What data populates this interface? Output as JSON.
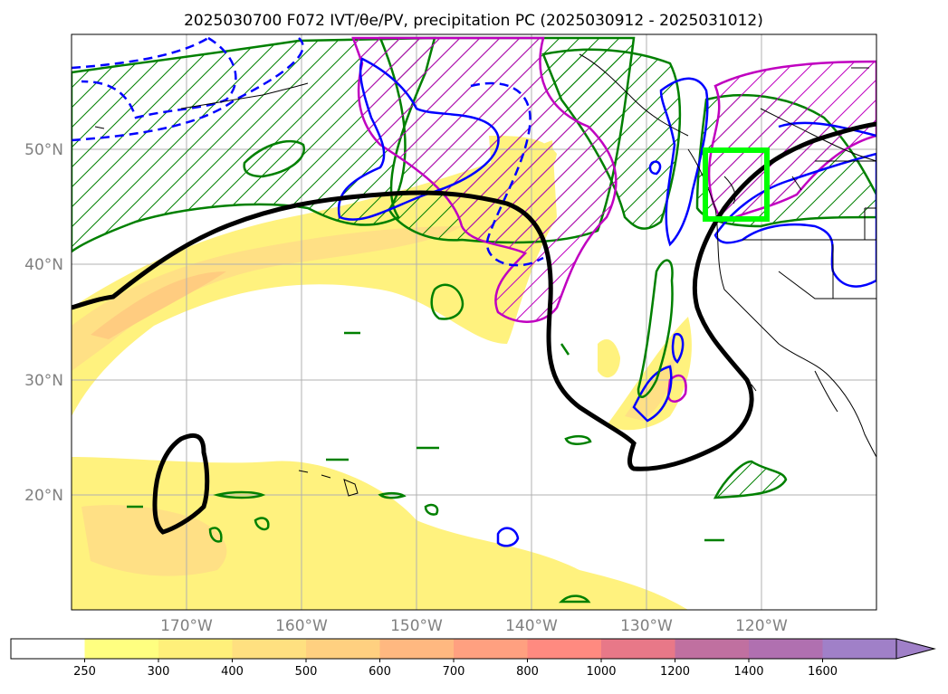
{
  "title": "2025030700 F072 IVT/θe/PV, precipitation PC (2025030912 - 2025031012)",
  "map": {
    "extent": {
      "lon_min": -180,
      "lon_max": -110,
      "lat_min": 10,
      "lat_max": 60
    },
    "lat_gridlines": [
      20,
      30,
      40,
      50
    ],
    "lon_gridlines": [
      -170,
      -160,
      -150,
      -140,
      -130,
      -120
    ],
    "lat_labels": [
      "20°N",
      "30°N",
      "40°N",
      "50°N"
    ],
    "lon_labels": [
      "170°W",
      "160°W",
      "150°W",
      "140°W",
      "130°W",
      "120°W"
    ],
    "grid": true,
    "highlight_box": {
      "lon_min": -125,
      "lon_max": -119.5,
      "lat_min": 44,
      "lat_max": 50,
      "color": "#00ff00"
    }
  },
  "colorbar": {
    "levels": [
      "250",
      "300",
      "400",
      "500",
      "600",
      "700",
      "800",
      "1000",
      "1200",
      "1400",
      "1600"
    ],
    "colors": [
      "#ffffff",
      "#ffff80",
      "#fff07a",
      "#ffe080",
      "#ffd080",
      "#ffb880",
      "#ffa080",
      "#ff8a80",
      "#e87888",
      "#c070a0",
      "#b070b0",
      "#a080c8"
    ],
    "extend": "max"
  },
  "colors": {
    "frame": "#000000",
    "pv_contour": "#000000",
    "green_contour": "#008000",
    "blue_contour": "#0000ff",
    "magenta_contour": "#c000c0",
    "highlight": "#00ff00",
    "grid": "#b0b0b0",
    "tick_label": "#808080"
  }
}
